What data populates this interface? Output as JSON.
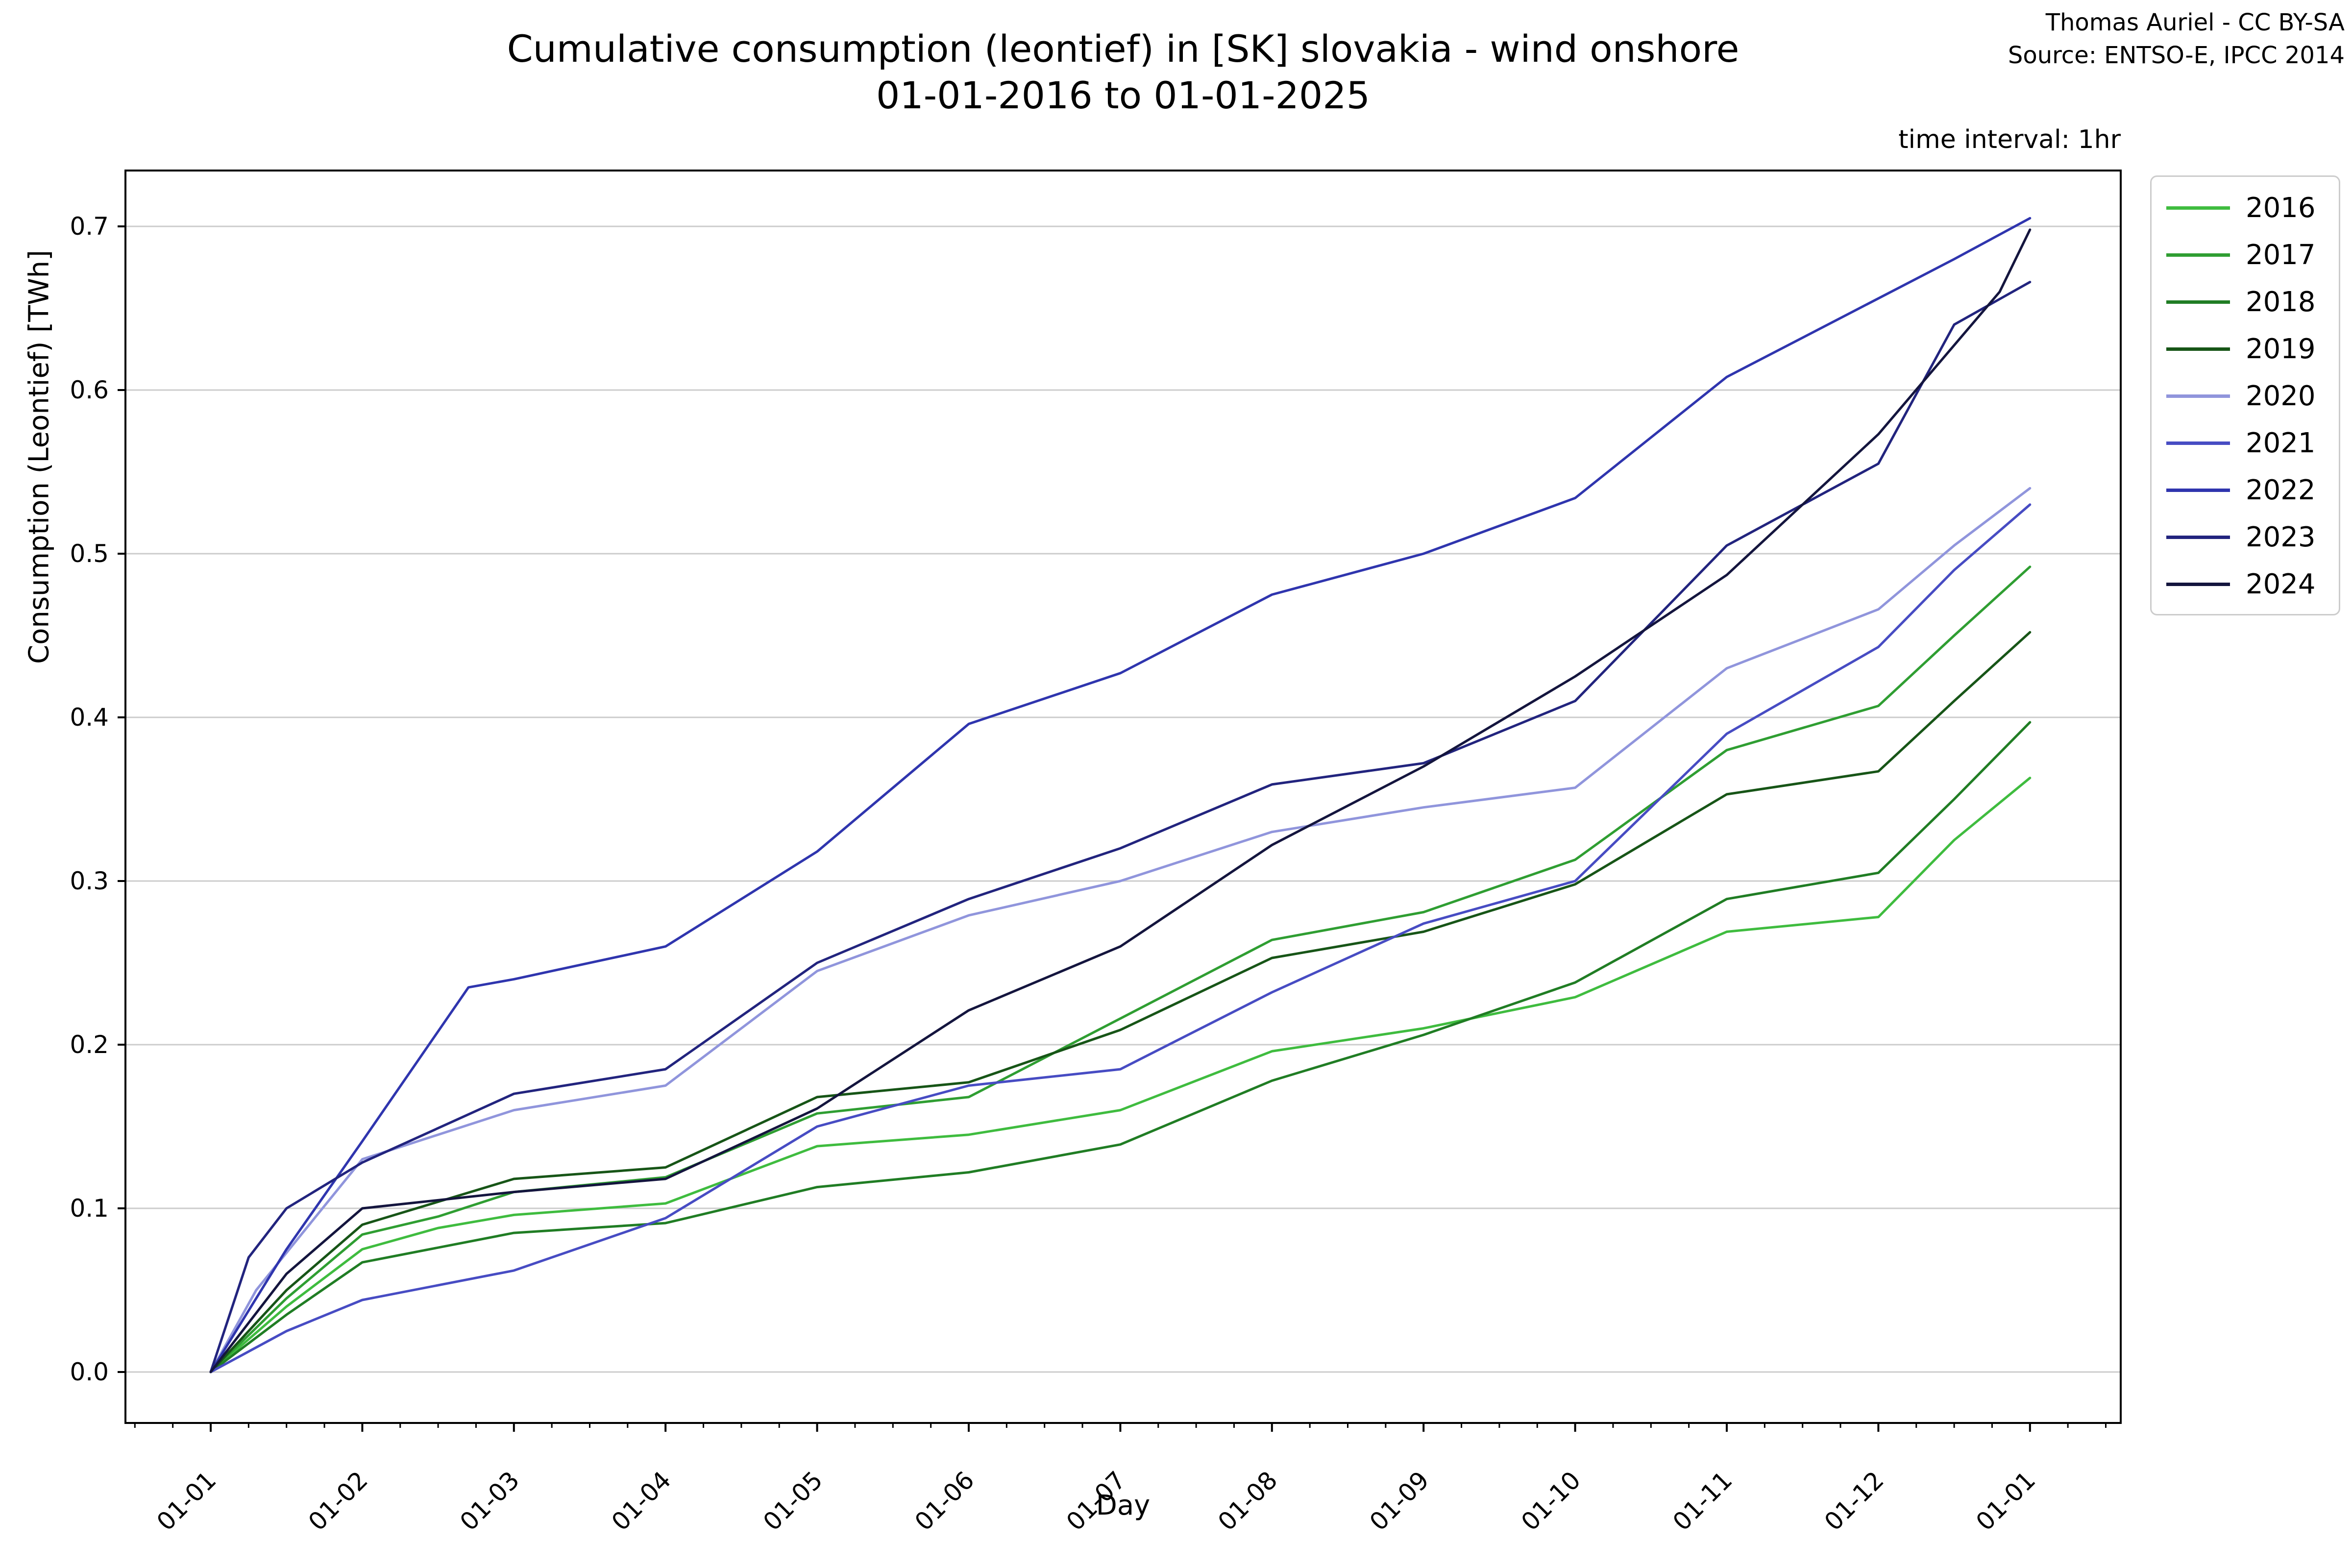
{
  "header": {
    "title_line1": "Cumulative consumption (leontief) in [SK] slovakia - wind onshore",
    "title_line2": "01-01-2016 to 01-01-2025",
    "attribution_line1": "Thomas Auriel - CC BY-SA",
    "attribution_line2": "Source: ENTSO-E, IPCC 2014",
    "time_interval_note": "time interval: 1hr"
  },
  "chart_data": {
    "type": "line",
    "title": "Cumulative consumption (leontief) in [SK] slovakia - wind onshore 01-01-2016 to 01-01-2025",
    "xlabel": "Day",
    "ylabel": "Consumption (Leontief) [TWh]",
    "x_tick_labels": [
      "01-01",
      "01-02",
      "01-03",
      "01-04",
      "01-05",
      "01-06",
      "01-07",
      "01-08",
      "01-09",
      "01-10",
      "01-11",
      "01-12",
      "01-01"
    ],
    "y_ticks": [
      0.0,
      0.1,
      0.2,
      0.3,
      0.4,
      0.5,
      0.6,
      0.7
    ],
    "ylim": [
      -0.035,
      0.735
    ],
    "xlim_months": [
      -0.56,
      12.6
    ],
    "grid": "horizontal-only",
    "grid_color": "#cccccc",
    "legend_position": "upper-right-outside",
    "units": "TWh",
    "x_units": "month ticks (01-01 2016 to 01-01 2025, hourly data)",
    "series": [
      {
        "name": "2016",
        "color": "#3fbc3f",
        "points": [
          [
            0,
            0
          ],
          [
            0.5,
            0.04
          ],
          [
            1,
            0.075
          ],
          [
            1.5,
            0.088
          ],
          [
            2,
            0.096
          ],
          [
            3,
            0.103
          ],
          [
            4,
            0.138
          ],
          [
            5,
            0.145
          ],
          [
            6,
            0.16
          ],
          [
            7,
            0.196
          ],
          [
            8,
            0.21
          ],
          [
            9,
            0.229
          ],
          [
            10,
            0.269
          ],
          [
            11,
            0.278
          ],
          [
            11.5,
            0.325
          ],
          [
            12,
            0.363
          ]
        ]
      },
      {
        "name": "2017",
        "color": "#2f9e32",
        "points": [
          [
            0,
            0
          ],
          [
            0.5,
            0.045
          ],
          [
            1,
            0.084
          ],
          [
            1.5,
            0.095
          ],
          [
            2,
            0.11
          ],
          [
            3,
            0.119
          ],
          [
            4,
            0.158
          ],
          [
            5,
            0.168
          ],
          [
            6,
            0.216
          ],
          [
            7,
            0.264
          ],
          [
            8,
            0.281
          ],
          [
            9,
            0.313
          ],
          [
            10,
            0.38
          ],
          [
            11,
            0.407
          ],
          [
            11.5,
            0.45
          ],
          [
            12,
            0.492
          ]
        ]
      },
      {
        "name": "2018",
        "color": "#207d24",
        "points": [
          [
            0,
            0
          ],
          [
            0.5,
            0.035
          ],
          [
            1,
            0.067
          ],
          [
            2,
            0.085
          ],
          [
            3,
            0.091
          ],
          [
            4,
            0.113
          ],
          [
            5,
            0.122
          ],
          [
            6,
            0.139
          ],
          [
            7,
            0.178
          ],
          [
            8,
            0.206
          ],
          [
            9,
            0.238
          ],
          [
            10,
            0.289
          ],
          [
            11,
            0.305
          ],
          [
            11.5,
            0.35
          ],
          [
            12,
            0.397
          ]
        ]
      },
      {
        "name": "2019",
        "color": "#175517",
        "points": [
          [
            0,
            0
          ],
          [
            0.5,
            0.05
          ],
          [
            1,
            0.09
          ],
          [
            2,
            0.118
          ],
          [
            3,
            0.125
          ],
          [
            4,
            0.168
          ],
          [
            5,
            0.177
          ],
          [
            6,
            0.209
          ],
          [
            7,
            0.253
          ],
          [
            8,
            0.269
          ],
          [
            9,
            0.298
          ],
          [
            10,
            0.353
          ],
          [
            11,
            0.367
          ],
          [
            11.5,
            0.41
          ],
          [
            12,
            0.452
          ]
        ]
      },
      {
        "name": "2020",
        "color": "#9095dc",
        "points": [
          [
            0,
            0
          ],
          [
            0.3,
            0.05
          ],
          [
            1,
            0.13
          ],
          [
            2,
            0.16
          ],
          [
            3,
            0.175
          ],
          [
            4,
            0.245
          ],
          [
            5,
            0.279
          ],
          [
            6,
            0.3
          ],
          [
            7,
            0.33
          ],
          [
            8,
            0.345
          ],
          [
            9,
            0.357
          ],
          [
            10,
            0.43
          ],
          [
            11,
            0.466
          ],
          [
            11.5,
            0.505
          ],
          [
            12,
            0.54
          ]
        ]
      },
      {
        "name": "2021",
        "color": "#474cc3",
        "points": [
          [
            0,
            0
          ],
          [
            0.5,
            0.025
          ],
          [
            1,
            0.044
          ],
          [
            2,
            0.062
          ],
          [
            3,
            0.094
          ],
          [
            4,
            0.15
          ],
          [
            5,
            0.175
          ],
          [
            6,
            0.185
          ],
          [
            7,
            0.232
          ],
          [
            8,
            0.274
          ],
          [
            9,
            0.3
          ],
          [
            10,
            0.39
          ],
          [
            11,
            0.443
          ],
          [
            11.5,
            0.49
          ],
          [
            12,
            0.53
          ]
        ]
      },
      {
        "name": "2022",
        "color": "#2f35ae",
        "points": [
          [
            0,
            0
          ],
          [
            0.5,
            0.075
          ],
          [
            1,
            0.141
          ],
          [
            1.7,
            0.235
          ],
          [
            2,
            0.24
          ],
          [
            3,
            0.26
          ],
          [
            4,
            0.318
          ],
          [
            5,
            0.396
          ],
          [
            6,
            0.427
          ],
          [
            7,
            0.475
          ],
          [
            8,
            0.5
          ],
          [
            9,
            0.534
          ],
          [
            10,
            0.608
          ],
          [
            11,
            0.656
          ],
          [
            11.5,
            0.68
          ],
          [
            12,
            0.705
          ]
        ]
      },
      {
        "name": "2023",
        "color": "#22247e",
        "points": [
          [
            0,
            0
          ],
          [
            0.25,
            0.07
          ],
          [
            0.5,
            0.1
          ],
          [
            1,
            0.128
          ],
          [
            2,
            0.17
          ],
          [
            3,
            0.185
          ],
          [
            4,
            0.25
          ],
          [
            5,
            0.289
          ],
          [
            6,
            0.32
          ],
          [
            7,
            0.359
          ],
          [
            8,
            0.372
          ],
          [
            9,
            0.41
          ],
          [
            10,
            0.505
          ],
          [
            11,
            0.555
          ],
          [
            11.5,
            0.64
          ],
          [
            12,
            0.666
          ]
        ]
      },
      {
        "name": "2024",
        "color": "#14153e",
        "points": [
          [
            0,
            0
          ],
          [
            0.5,
            0.06
          ],
          [
            1,
            0.1
          ],
          [
            2,
            0.11
          ],
          [
            3,
            0.118
          ],
          [
            4,
            0.161
          ],
          [
            5,
            0.221
          ],
          [
            6,
            0.26
          ],
          [
            7,
            0.322
          ],
          [
            8,
            0.37
          ],
          [
            9,
            0.425
          ],
          [
            10,
            0.487
          ],
          [
            11,
            0.573
          ],
          [
            11.8,
            0.66
          ],
          [
            12,
            0.698
          ]
        ]
      }
    ]
  }
}
